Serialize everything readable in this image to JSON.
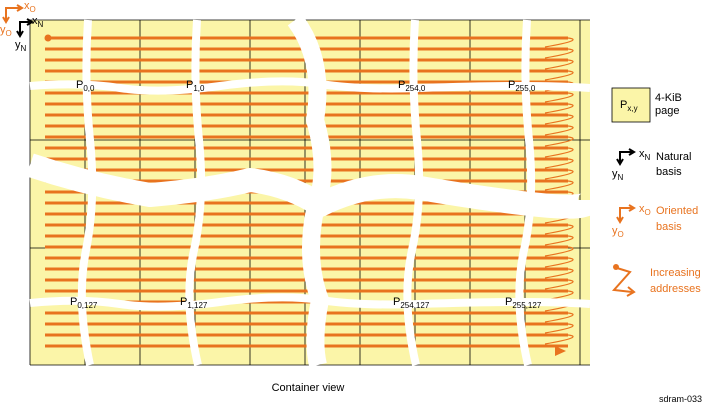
{
  "axes": {
    "oriented_x": {
      "main": "x",
      "sub": "O"
    },
    "oriented_y": {
      "main": "y",
      "sub": "O"
    },
    "natural_x": {
      "main": "x",
      "sub": "N"
    },
    "natural_y": {
      "main": "y",
      "sub": "N"
    }
  },
  "pages": [
    {
      "main": "P",
      "sub": "0,0"
    },
    {
      "main": "P",
      "sub": "1,0"
    },
    {
      "main": "P",
      "sub": "254,0"
    },
    {
      "main": "P",
      "sub": "255,0"
    },
    {
      "main": "P",
      "sub": "0,127"
    },
    {
      "main": "P",
      "sub": "1,127"
    },
    {
      "main": "P",
      "sub": "254,127"
    },
    {
      "main": "P",
      "sub": "255,127"
    }
  ],
  "legend": {
    "page_box": {
      "main": "P",
      "sub": "x,y"
    },
    "page_text": [
      "4-KiB",
      "page"
    ],
    "natural": [
      "Natural",
      "basis"
    ],
    "natural_x": {
      "main": "x",
      "sub": "N"
    },
    "natural_y": {
      "main": "y",
      "sub": "N"
    },
    "oriented": [
      "Oriented",
      "basis"
    ],
    "oriented_x": {
      "main": "x",
      "sub": "O"
    },
    "oriented_y": {
      "main": "y",
      "sub": "O"
    },
    "increasing": [
      "Increasing",
      "addresses"
    ]
  },
  "caption": "Container view",
  "figure_id": "sdram-033"
}
